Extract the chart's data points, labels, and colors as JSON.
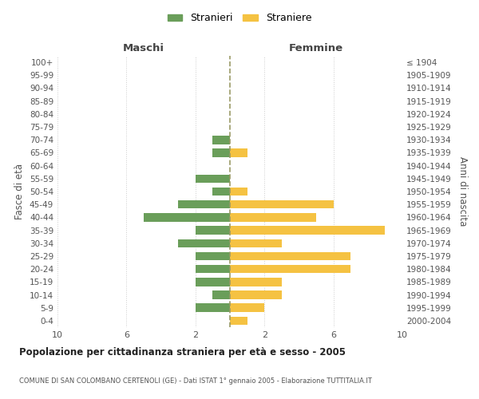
{
  "age_groups": [
    "100+",
    "95-99",
    "90-94",
    "85-89",
    "80-84",
    "75-79",
    "70-74",
    "65-69",
    "60-64",
    "55-59",
    "50-54",
    "45-49",
    "40-44",
    "35-39",
    "30-34",
    "25-29",
    "20-24",
    "15-19",
    "10-14",
    "5-9",
    "0-4"
  ],
  "birth_years": [
    "≤ 1904",
    "1905-1909",
    "1910-1914",
    "1915-1919",
    "1920-1924",
    "1925-1929",
    "1930-1934",
    "1935-1939",
    "1940-1944",
    "1945-1949",
    "1950-1954",
    "1955-1959",
    "1960-1964",
    "1965-1969",
    "1970-1974",
    "1975-1979",
    "1980-1984",
    "1985-1989",
    "1990-1994",
    "1995-1999",
    "2000-2004"
  ],
  "maschi": [
    0,
    0,
    0,
    0,
    0,
    0,
    1,
    1,
    0,
    2,
    1,
    3,
    5,
    2,
    3,
    2,
    2,
    2,
    1,
    2,
    0
  ],
  "femmine": [
    0,
    0,
    0,
    0,
    0,
    0,
    0,
    1,
    0,
    0,
    1,
    6,
    5,
    9,
    3,
    7,
    7,
    3,
    3,
    2,
    1
  ],
  "color_maschi": "#6a9e5a",
  "color_femmine": "#f5c242",
  "xlim": 10,
  "title": "Popolazione per cittadinanza straniera per età e sesso - 2005",
  "subtitle": "COMUNE DI SAN COLOMBANO CERTENOLI (GE) - Dati ISTAT 1° gennaio 2005 - Elaborazione TUTTITALIA.IT",
  "ylabel_left": "Fasce di età",
  "ylabel_right": "Anni di nascita",
  "xlabel_maschi": "Maschi",
  "xlabel_femmine": "Femmine",
  "legend_maschi": "Stranieri",
  "legend_femmine": "Straniere",
  "background_color": "#ffffff",
  "grid_color": "#cccccc"
}
